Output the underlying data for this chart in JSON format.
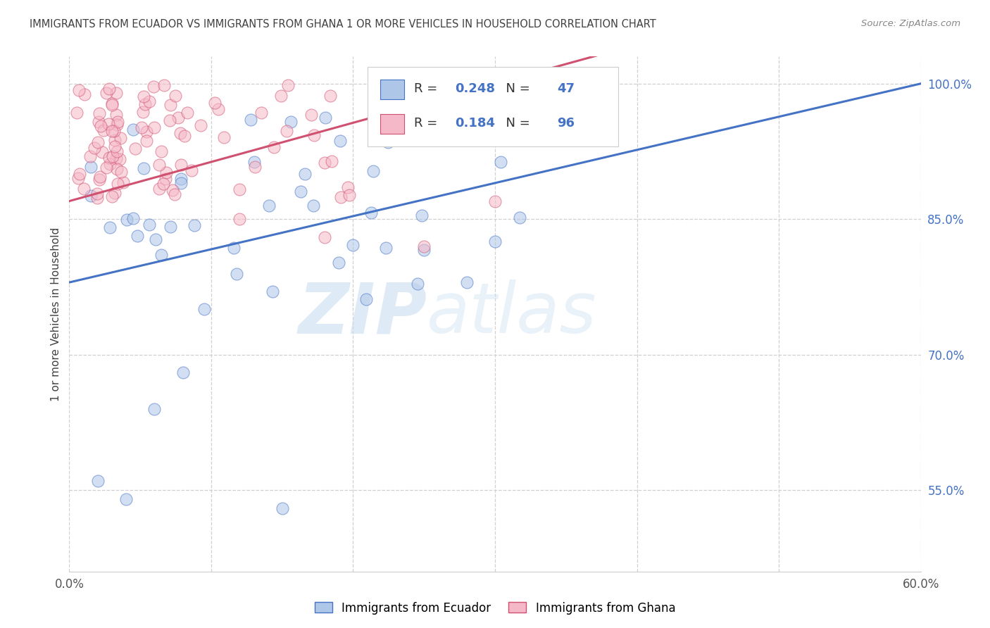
{
  "title": "IMMIGRANTS FROM ECUADOR VS IMMIGRANTS FROM GHANA 1 OR MORE VEHICLES IN HOUSEHOLD CORRELATION CHART",
  "source": "Source: ZipAtlas.com",
  "ylabel": "1 or more Vehicles in Household",
  "legend_ecuador": "Immigrants from Ecuador",
  "legend_ghana": "Immigrants from Ghana",
  "r_ecuador": 0.248,
  "n_ecuador": 47,
  "r_ghana": 0.184,
  "n_ghana": 96,
  "color_ecuador": "#aec6e8",
  "color_ghana": "#f5b8c8",
  "line_color_ecuador": "#4472c4",
  "line_color_ghana": "#d05070",
  "xmin": 0.0,
  "xmax": 0.6,
  "ymin": 0.46,
  "ymax": 1.03,
  "ytick_labels_right": [
    "100.0%",
    "85.0%",
    "70.0%",
    "55.0%"
  ],
  "ytick_vals_right": [
    1.0,
    0.85,
    0.7,
    0.55
  ],
  "watermark_zip": "ZIP",
  "watermark_atlas": "atlas",
  "background_color": "#ffffff",
  "grid_color": "#d0d0d0",
  "title_color": "#404040",
  "right_tick_color": "#4472c4"
}
